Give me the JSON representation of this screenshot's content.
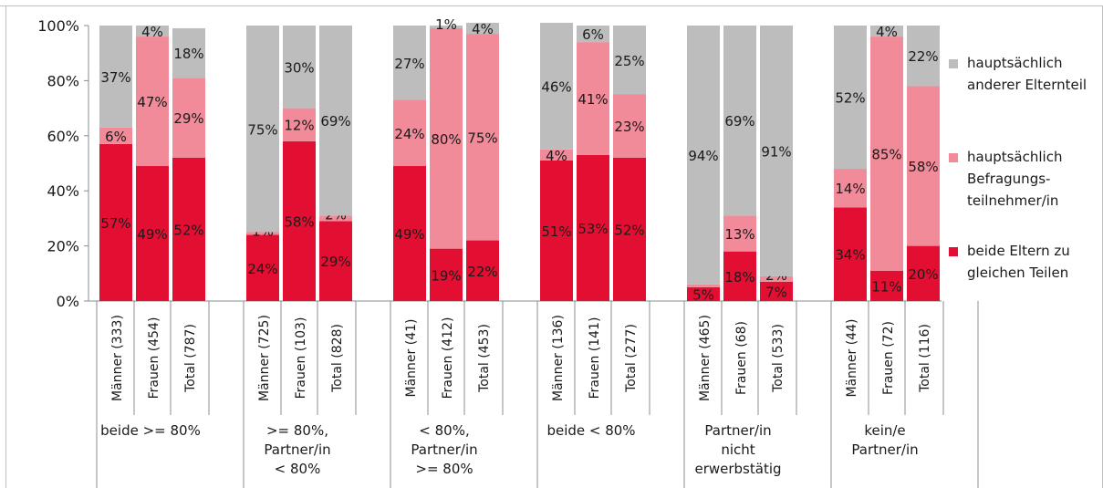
{
  "chart_data": {
    "type": "bar",
    "stacked": true,
    "percent_scale": true,
    "ylim": [
      0,
      100
    ],
    "yticks": [
      "0%",
      "20%",
      "40%",
      "60%",
      "80%",
      "100%"
    ],
    "grid": false,
    "legend_position": "right",
    "colors": {
      "beide": "#e30f33",
      "befragung": "#f28b99",
      "anderer": "#bdbdbd",
      "axis": "#8c8c8c",
      "text": "#1a1a1a"
    },
    "series": [
      {
        "key": "beide",
        "name_lines": [
          "beide Eltern zu",
          "gleichen Teilen"
        ]
      },
      {
        "key": "befragung",
        "name_lines": [
          "hauptsächlich",
          "Befragungs-",
          "teilnehmer/in"
        ]
      },
      {
        "key": "anderer",
        "name_lines": [
          "hauptsächlich",
          "anderer Elternteil"
        ]
      }
    ],
    "groups": [
      {
        "label_lines": [
          "beide >= 80%"
        ],
        "bars": [
          {
            "label": "Männer (333)",
            "beide": 57,
            "befragung": 6,
            "anderer": 37,
            "labels": [
              "57%",
              "6%",
              "37%"
            ]
          },
          {
            "label": "Frauen (454)",
            "beide": 49,
            "befragung": 47,
            "anderer": 4,
            "labels": [
              "49%",
              "47%",
              "4%"
            ]
          },
          {
            "label": "Total (787)",
            "beide": 52,
            "befragung": 29,
            "anderer": 18,
            "labels": [
              "52%",
              "29%",
              "18%"
            ]
          }
        ]
      },
      {
        "label_lines": [
          ">= 80%,",
          "Partner/in",
          "< 80%"
        ],
        "bars": [
          {
            "label": "Männer (725)",
            "beide": 24,
            "befragung": 1,
            "anderer": 75,
            "labels": [
              "24%",
              "1%",
              "75%"
            ]
          },
          {
            "label": "Frauen (103)",
            "beide": 58,
            "befragung": 12,
            "anderer": 30,
            "labels": [
              "58%",
              "12%",
              "30%"
            ]
          },
          {
            "label": "Total (828)",
            "beide": 29,
            "befragung": 2,
            "anderer": 69,
            "labels": [
              "29%",
              "2%",
              "69%"
            ]
          }
        ]
      },
      {
        "label_lines": [
          "< 80%,",
          "Partner/in",
          ">= 80%"
        ],
        "bars": [
          {
            "label": "Männer (41)",
            "beide": 49,
            "befragung": 24,
            "anderer": 27,
            "labels": [
              "49%",
              "24%",
              "27%"
            ]
          },
          {
            "label": "Frauen (412)",
            "beide": 19,
            "befragung": 80,
            "anderer": 1,
            "labels": [
              "19%",
              "80%",
              "1%"
            ]
          },
          {
            "label": "Total (453)",
            "beide": 22,
            "befragung": 75,
            "anderer": 4,
            "labels": [
              "22%",
              "75%",
              "4%"
            ]
          }
        ]
      },
      {
        "label_lines": [
          "beide < 80%"
        ],
        "bars": [
          {
            "label": "Männer (136)",
            "beide": 51,
            "befragung": 4,
            "anderer": 46,
            "labels": [
              "51%",
              "4%",
              "46%"
            ]
          },
          {
            "label": "Frauen (141)",
            "beide": 53,
            "befragung": 41,
            "anderer": 6,
            "labels": [
              "53%",
              "41%",
              "6%"
            ]
          },
          {
            "label": "Total (277)",
            "beide": 52,
            "befragung": 23,
            "anderer": 25,
            "labels": [
              "52%",
              "23%",
              "25%"
            ]
          }
        ]
      },
      {
        "label_lines": [
          "Partner/in",
          "nicht",
          "erwerbstätig"
        ],
        "bars": [
          {
            "label": "Männer (465)",
            "beide": 5,
            "befragung": 1,
            "anderer": 94,
            "labels": [
              "5%",
              "",
              "94%"
            ]
          },
          {
            "label": "Frauen (68)",
            "beide": 18,
            "befragung": 13,
            "anderer": 69,
            "labels": [
              "18%",
              "13%",
              "69%"
            ]
          },
          {
            "label": "Total (533)",
            "beide": 7,
            "befragung": 2,
            "anderer": 91,
            "labels": [
              "7%",
              "2%",
              "91%"
            ]
          }
        ]
      },
      {
        "label_lines": [
          "kein/e",
          "Partner/in"
        ],
        "bars": [
          {
            "label": "Männer (44)",
            "beide": 34,
            "befragung": 14,
            "anderer": 52,
            "labels": [
              "34%",
              "14%",
              "52%"
            ]
          },
          {
            "label": "Frauen (72)",
            "beide": 11,
            "befragung": 85,
            "anderer": 4,
            "labels": [
              "11%",
              "85%",
              "4%"
            ]
          },
          {
            "label": "Total (116)",
            "beide": 20,
            "befragung": 58,
            "anderer": 22,
            "labels": [
              "20%",
              "58%",
              "22%"
            ]
          }
        ]
      }
    ]
  }
}
